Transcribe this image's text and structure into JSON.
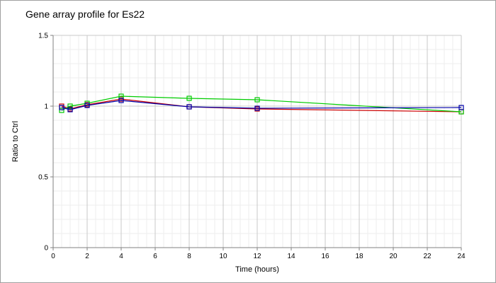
{
  "chart_data": {
    "type": "line",
    "title": "Gene array profile for Es22",
    "xlabel": "Time (hours)",
    "ylabel": "Ratio to Ctrl",
    "xlim": [
      0,
      24
    ],
    "ylim": [
      0,
      1.5
    ],
    "x_ticks": [
      "0",
      "2",
      "4",
      "6",
      "8",
      "10",
      "12",
      "14",
      "16",
      "18",
      "20",
      "22",
      "24"
    ],
    "y_ticks": [
      "0",
      "0.5",
      "1",
      "1.5"
    ],
    "grid": true,
    "legend": "none",
    "series": [
      {
        "color": "#cc0000",
        "marker": "square",
        "x": [
          0.5,
          1,
          2,
          4,
          8,
          12,
          24
        ],
        "y": [
          1.0,
          0.98,
          1.01,
          1.05,
          0.995,
          0.98,
          0.96
        ]
      },
      {
        "color": "#00cc00",
        "marker": "square",
        "x": [
          0.5,
          1,
          2,
          4,
          8,
          12,
          24
        ],
        "y": [
          0.97,
          1.0,
          1.02,
          1.07,
          1.055,
          1.045,
          0.96
        ]
      },
      {
        "color": "#0000aa",
        "marker": "square",
        "x": [
          0.5,
          1,
          2,
          4,
          8,
          12,
          24
        ],
        "y": [
          0.99,
          0.975,
          1.005,
          1.04,
          0.995,
          0.985,
          0.99
        ]
      }
    ]
  }
}
